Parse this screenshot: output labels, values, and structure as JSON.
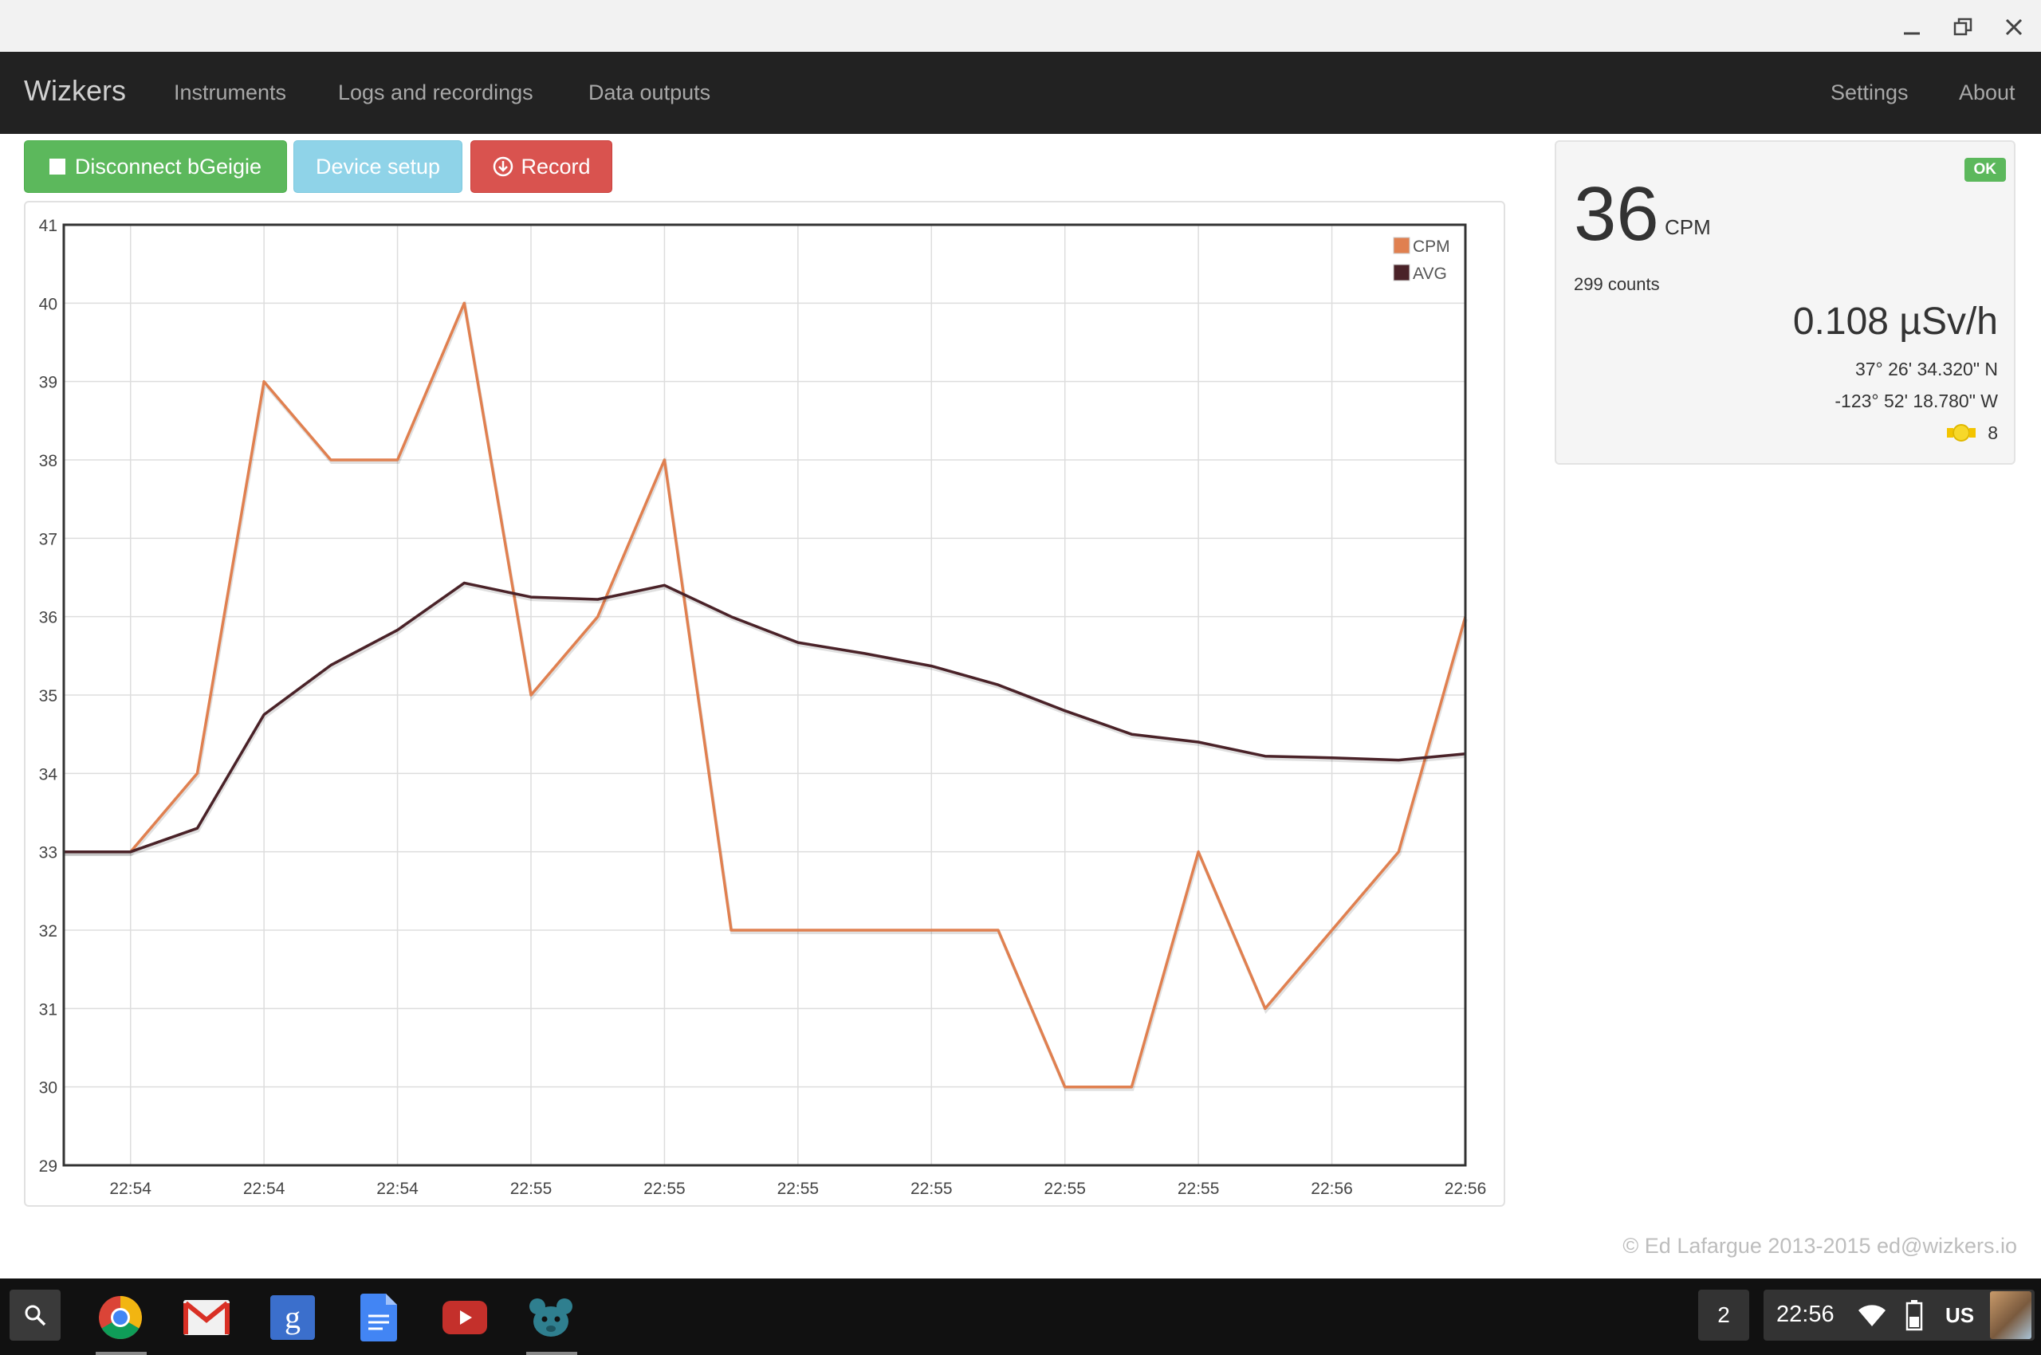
{
  "navbar": {
    "brand": "Wizkers",
    "links": [
      "Instruments",
      "Logs and recordings",
      "Data outputs"
    ],
    "right_links": [
      "Settings",
      "About"
    ]
  },
  "toolbar": {
    "disconnect_label": "Disconnect bGeigie",
    "device_setup_label": "Device setup",
    "record_label": "Record"
  },
  "status_panel": {
    "status_badge": "OK",
    "cpm_value": "36",
    "cpm_unit": "CPM",
    "counts": "299 counts",
    "dose_rate": "0.108 µSv/h",
    "latitude": "37° 26' 34.320\" N",
    "longitude": "-123° 52' 18.780\" W",
    "satellites": "8"
  },
  "footer": {
    "copyright": "© Ed Lafargue 2013-2015 ed@wizkers.io"
  },
  "taskbar": {
    "apps": [
      "search-icon",
      "chrome-icon",
      "gmail-icon",
      "google-search-icon",
      "docs-icon",
      "youtube-icon",
      "wizkers-icon"
    ],
    "desk_number": "2",
    "time": "22:56",
    "keyboard_layout": "US"
  },
  "colors": {
    "cpm": "#e08050",
    "avg": "#4a2228",
    "ok": "#5cb85c"
  },
  "chart_data": {
    "type": "line",
    "x_tick_labels": [
      "22:54",
      "22:54",
      "22:54",
      "22:55",
      "22:55",
      "22:55",
      "22:55",
      "22:55",
      "22:55",
      "22:56",
      "22:56"
    ],
    "ylim": [
      29,
      41
    ],
    "y_ticks": [
      29,
      30,
      31,
      32,
      33,
      34,
      35,
      36,
      37,
      38,
      39,
      40,
      41
    ],
    "grid": true,
    "legend_position": "top-right",
    "series": [
      {
        "name": "CPM",
        "color": "#e08050",
        "values": [
          33,
          33,
          34,
          39,
          38,
          38,
          40,
          35,
          36,
          38,
          32,
          32,
          32,
          32,
          32,
          30,
          30,
          33,
          31,
          32,
          33,
          36
        ]
      },
      {
        "name": "AVG",
        "color": "#4a2228",
        "values": [
          33,
          33,
          33.3,
          34.75,
          35.38,
          35.83,
          36.43,
          36.25,
          36.22,
          36.4,
          36.0,
          35.67,
          35.53,
          35.37,
          35.13,
          34.8,
          34.5,
          34.4,
          34.22,
          34.2,
          34.17,
          34.25
        ]
      }
    ]
  }
}
